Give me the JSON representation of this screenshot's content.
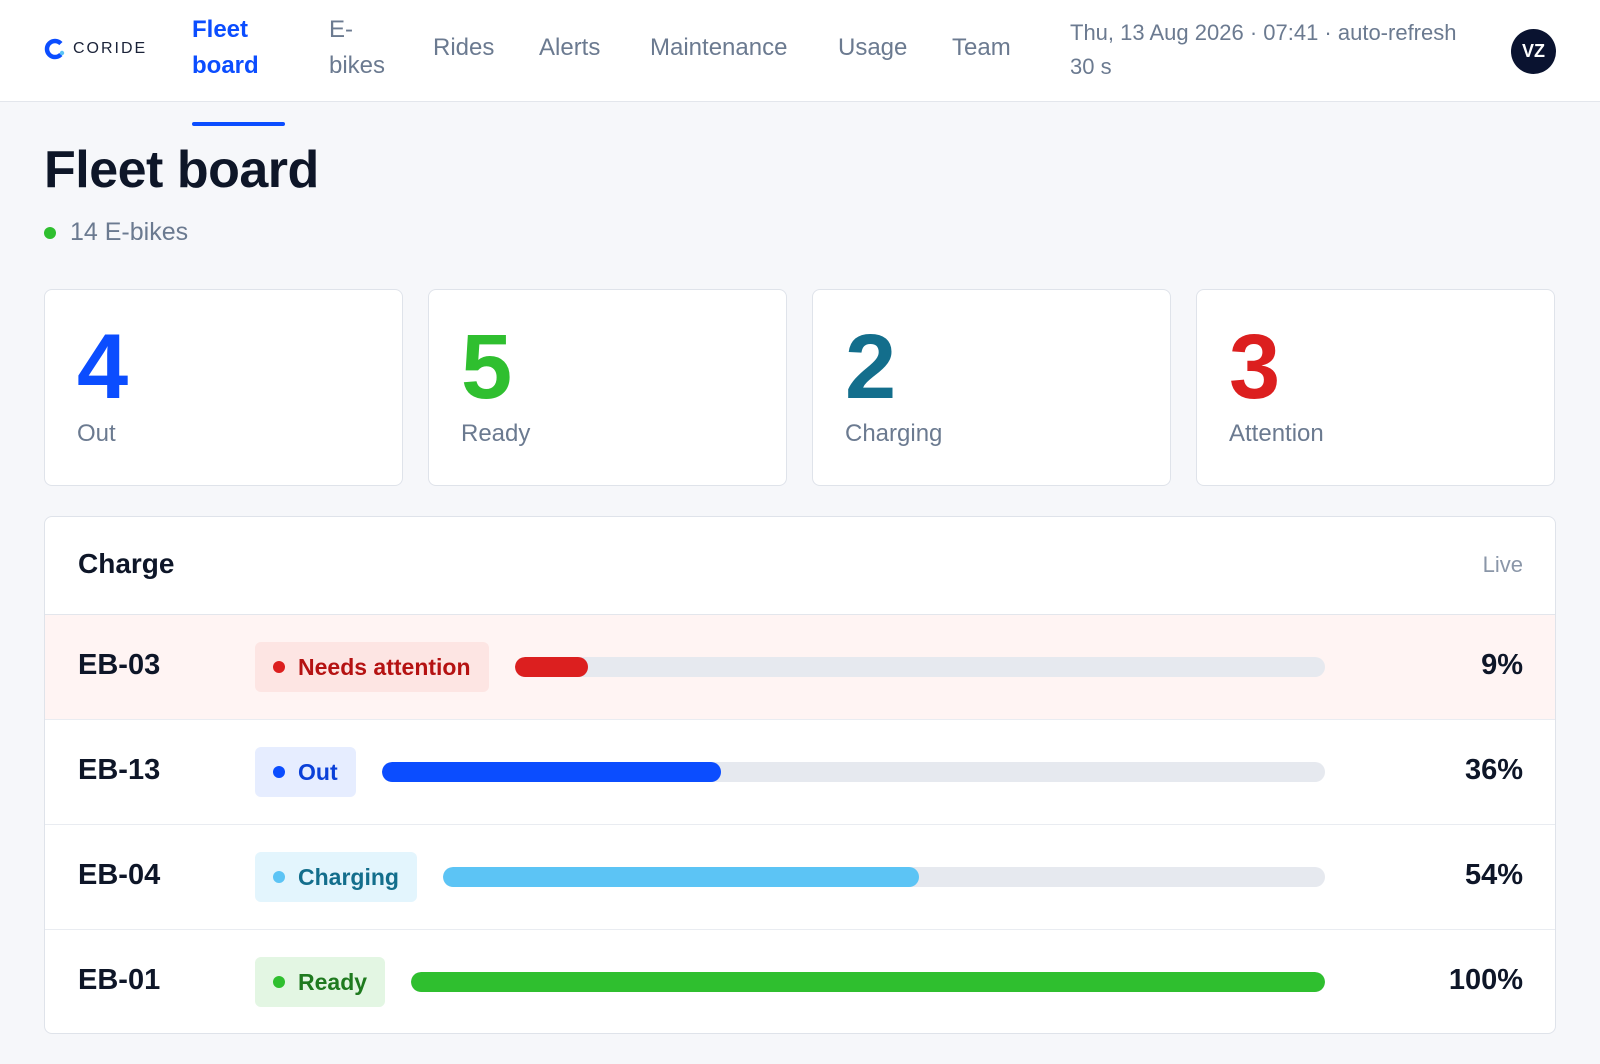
{
  "brand": {
    "name": "CORIDE",
    "accent": "#0b4dff"
  },
  "nav": {
    "items": [
      {
        "label": "Fleet board",
        "active": true
      },
      {
        "label": "E-bikes",
        "active": false
      },
      {
        "label": "Rides",
        "active": false
      },
      {
        "label": "Alerts",
        "active": false
      },
      {
        "label": "Maintenance",
        "active": false
      },
      {
        "label": "Usage",
        "active": false
      },
      {
        "label": "Team",
        "active": false
      }
    ]
  },
  "header": {
    "datetime": "Thu, 13 Aug 2026 · 07:41 · auto-refresh 30 s",
    "avatar_initials": "VZ"
  },
  "page": {
    "title": "Fleet board",
    "fleet_count": "14 E-bikes",
    "fleet_dot_color": "#2fbf2f"
  },
  "stats": [
    {
      "value": "4",
      "label": "Out",
      "color": "#0b4dff"
    },
    {
      "value": "5",
      "label": "Ready",
      "color": "#2fbf2f"
    },
    {
      "value": "2",
      "label": "Charging",
      "color": "#136e8c"
    },
    {
      "value": "3",
      "label": "Attention",
      "color": "#dc1f1f"
    }
  ],
  "charge": {
    "title": "Charge",
    "live_label": "Live",
    "rows": [
      {
        "id": "EB-03",
        "status": "Needs attention",
        "pct_label": "9%",
        "pct": 9,
        "status_key": "attention"
      },
      {
        "id": "EB-13",
        "status": "Out",
        "pct_label": "36%",
        "pct": 36,
        "status_key": "out"
      },
      {
        "id": "EB-04",
        "status": "Charging",
        "pct_label": "54%",
        "pct": 54,
        "status_key": "charging"
      },
      {
        "id": "EB-01",
        "status": "Ready",
        "pct_label": "100%",
        "pct": 100,
        "status_key": "ready"
      }
    ]
  },
  "status_colors": {
    "attention": {
      "bar": "#dc1f1f",
      "badge_bg": "#fde5e3",
      "badge_text": "#b51212",
      "dot": "#dc1f1f"
    },
    "out": {
      "bar": "#0b4dff",
      "badge_bg": "#e6edff",
      "badge_text": "#0b40d8",
      "dot": "#0b4dff"
    },
    "charging": {
      "bar": "#5cc4f5",
      "badge_bg": "#e3f5fd",
      "badge_text": "#136e8c",
      "dot": "#5cc4f5"
    },
    "ready": {
      "bar": "#2fbf2f",
      "badge_bg": "#e3f6e3",
      "badge_text": "#1f7a1f",
      "dot": "#2fbf2f"
    }
  }
}
